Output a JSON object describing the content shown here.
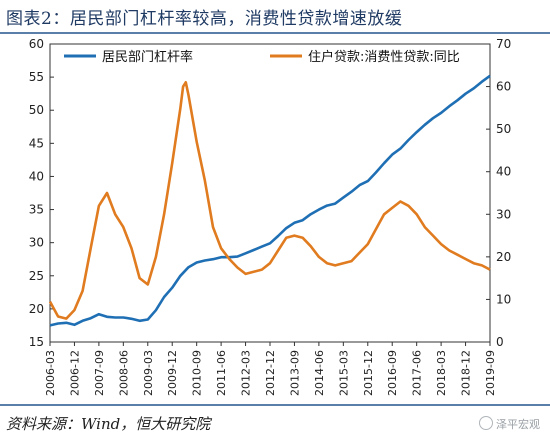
{
  "title": "图表2：居民部门杠杆率较高，消费性贷款增速放缓",
  "source": "资料来源：Wind，恒大研究院",
  "watermark": "泽平宏观",
  "chart_data": {
    "type": "line",
    "left_axis": {
      "ylim": [
        15,
        60
      ],
      "ticks": [
        15,
        20,
        25,
        30,
        35,
        40,
        45,
        50,
        55,
        60
      ]
    },
    "right_axis": {
      "ylim": [
        0,
        70
      ],
      "ticks": [
        0,
        10,
        20,
        30,
        40,
        50,
        60,
        70
      ]
    },
    "x_range": [
      "2006-03",
      "2019-09"
    ],
    "x_ticks": [
      "2006-03",
      "2006-12",
      "2007-09",
      "2008-06",
      "2009-03",
      "2009-12",
      "2010-09",
      "2011-06",
      "2012-03",
      "2012-12",
      "2013-09",
      "2014-06",
      "2015-03",
      "2015-12",
      "2016-09",
      "2017-06",
      "2018-03",
      "2018-12",
      "2019-09"
    ],
    "legend_placement": "top",
    "grid": false,
    "series": [
      {
        "name": "居民部门杠杆率",
        "axis": "left",
        "color": "#1f6fb4",
        "points": [
          [
            "2006-03",
            17.5
          ],
          [
            "2006-06",
            17.8
          ],
          [
            "2006-09",
            17.9
          ],
          [
            "2006-12",
            17.6
          ],
          [
            "2007-03",
            18.2
          ],
          [
            "2007-06",
            18.6
          ],
          [
            "2007-09",
            19.2
          ],
          [
            "2007-12",
            18.8
          ],
          [
            "2008-03",
            18.7
          ],
          [
            "2008-06",
            18.7
          ],
          [
            "2008-09",
            18.5
          ],
          [
            "2008-12",
            18.2
          ],
          [
            "2009-03",
            18.4
          ],
          [
            "2009-06",
            19.8
          ],
          [
            "2009-09",
            21.8
          ],
          [
            "2009-12",
            23.2
          ],
          [
            "2010-03",
            25.0
          ],
          [
            "2010-06",
            26.3
          ],
          [
            "2010-09",
            27.0
          ],
          [
            "2010-12",
            27.3
          ],
          [
            "2011-03",
            27.5
          ],
          [
            "2011-06",
            27.8
          ],
          [
            "2011-09",
            27.8
          ],
          [
            "2011-12",
            27.9
          ],
          [
            "2012-03",
            28.4
          ],
          [
            "2012-06",
            28.9
          ],
          [
            "2012-09",
            29.4
          ],
          [
            "2012-12",
            29.9
          ],
          [
            "2013-03",
            31.0
          ],
          [
            "2013-06",
            32.2
          ],
          [
            "2013-09",
            33.0
          ],
          [
            "2013-12",
            33.4
          ],
          [
            "2014-03",
            34.3
          ],
          [
            "2014-06",
            35.0
          ],
          [
            "2014-09",
            35.6
          ],
          [
            "2014-12",
            35.9
          ],
          [
            "2015-03",
            36.8
          ],
          [
            "2015-06",
            37.7
          ],
          [
            "2015-09",
            38.7
          ],
          [
            "2015-12",
            39.3
          ],
          [
            "2016-03",
            40.6
          ],
          [
            "2016-06",
            42.0
          ],
          [
            "2016-09",
            43.3
          ],
          [
            "2016-12",
            44.2
          ],
          [
            "2017-03",
            45.5
          ],
          [
            "2017-06",
            46.7
          ],
          [
            "2017-09",
            47.8
          ],
          [
            "2017-12",
            48.8
          ],
          [
            "2018-03",
            49.6
          ],
          [
            "2018-06",
            50.6
          ],
          [
            "2018-09",
            51.5
          ],
          [
            "2018-12",
            52.5
          ],
          [
            "2019-03",
            53.3
          ],
          [
            "2019-06",
            54.3
          ],
          [
            "2019-09",
            55.2
          ]
        ]
      },
      {
        "name": "住户贷款:消费性贷款:同比",
        "axis": "right",
        "color": "#e07b1f",
        "points": [
          [
            "2006-03",
            9.5
          ],
          [
            "2006-06",
            6.0
          ],
          [
            "2006-09",
            5.5
          ],
          [
            "2006-12",
            7.5
          ],
          [
            "2007-03",
            12.0
          ],
          [
            "2007-06",
            22.0
          ],
          [
            "2007-09",
            32.0
          ],
          [
            "2007-12",
            35.0
          ],
          [
            "2008-03",
            30.0
          ],
          [
            "2008-06",
            27.0
          ],
          [
            "2008-09",
            22.0
          ],
          [
            "2008-12",
            15.0
          ],
          [
            "2009-03",
            13.5
          ],
          [
            "2009-06",
            20.0
          ],
          [
            "2009-09",
            30.0
          ],
          [
            "2009-12",
            42.0
          ],
          [
            "2010-03",
            55.0
          ],
          [
            "2010-04",
            60.0
          ],
          [
            "2010-05",
            61.0
          ],
          [
            "2010-06",
            58.0
          ],
          [
            "2010-09",
            47.0
          ],
          [
            "2010-12",
            38.0
          ],
          [
            "2011-03",
            27.0
          ],
          [
            "2011-06",
            22.0
          ],
          [
            "2011-09",
            19.5
          ],
          [
            "2011-12",
            17.5
          ],
          [
            "2012-03",
            16.0
          ],
          [
            "2012-06",
            16.5
          ],
          [
            "2012-09",
            17.0
          ],
          [
            "2012-12",
            18.5
          ],
          [
            "2013-03",
            21.5
          ],
          [
            "2013-06",
            24.5
          ],
          [
            "2013-09",
            25.0
          ],
          [
            "2013-12",
            24.5
          ],
          [
            "2014-03",
            22.5
          ],
          [
            "2014-06",
            20.0
          ],
          [
            "2014-09",
            18.5
          ],
          [
            "2014-12",
            18.0
          ],
          [
            "2015-03",
            18.5
          ],
          [
            "2015-06",
            19.0
          ],
          [
            "2015-09",
            21.0
          ],
          [
            "2015-12",
            23.0
          ],
          [
            "2016-03",
            26.5
          ],
          [
            "2016-06",
            30.0
          ],
          [
            "2016-09",
            31.5
          ],
          [
            "2016-12",
            33.0
          ],
          [
            "2017-03",
            32.0
          ],
          [
            "2017-06",
            30.0
          ],
          [
            "2017-09",
            27.0
          ],
          [
            "2017-12",
            25.0
          ],
          [
            "2018-03",
            23.0
          ],
          [
            "2018-06",
            21.5
          ],
          [
            "2018-09",
            20.5
          ],
          [
            "2018-12",
            19.5
          ],
          [
            "2019-03",
            18.5
          ],
          [
            "2019-06",
            18.0
          ],
          [
            "2019-09",
            17.0
          ]
        ]
      }
    ]
  }
}
